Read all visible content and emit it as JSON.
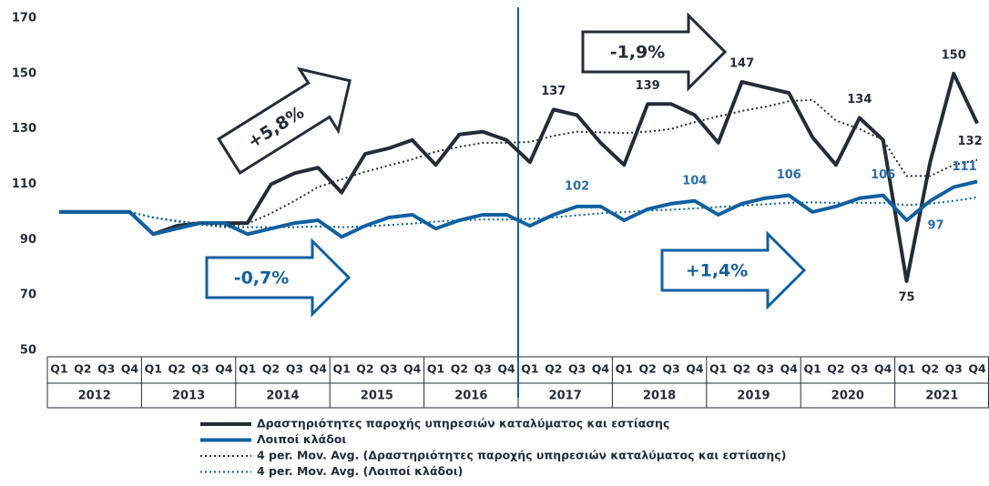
{
  "chart_data": {
    "type": "line",
    "categories": [
      "Q1",
      "Q2",
      "Q3",
      "Q4",
      "Q1",
      "Q2",
      "Q3",
      "Q4",
      "Q1",
      "Q2",
      "Q3",
      "Q4",
      "Q1",
      "Q2",
      "Q3",
      "Q4",
      "Q1",
      "Q2",
      "Q3",
      "Q4",
      "Q1",
      "Q2",
      "Q3",
      "Q4",
      "Q1",
      "Q2",
      "Q3",
      "Q4",
      "Q1",
      "Q2",
      "Q3",
      "Q4",
      "Q1",
      "Q2",
      "Q3",
      "Q4",
      "Q1",
      "Q2",
      "Q3",
      "Q4"
    ],
    "years": [
      "2012",
      "2013",
      "2014",
      "2015",
      "2016",
      "2017",
      "2018",
      "2019",
      "2020",
      "2021"
    ],
    "ylim": [
      50,
      170
    ],
    "yticks": [
      50,
      70,
      90,
      110,
      130,
      150,
      170
    ],
    "grid": false,
    "series": [
      {
        "name": "Δραστηριότητες παροχής υπηρεσιών καταλύματος και εστίασης",
        "color": "#262b36",
        "style": "solid",
        "values": [
          100,
          100,
          100,
          100,
          92,
          95,
          96,
          96,
          96,
          110,
          114,
          116,
          107,
          121,
          123,
          126,
          117,
          128,
          129,
          126,
          118,
          137,
          135,
          125,
          117,
          139,
          139,
          135,
          125,
          147,
          145,
          143,
          127,
          117,
          134,
          126,
          75,
          118,
          150,
          132
        ],
        "value_labels": [
          null,
          null,
          null,
          null,
          null,
          null,
          null,
          null,
          null,
          null,
          null,
          null,
          null,
          null,
          null,
          null,
          null,
          null,
          null,
          null,
          null,
          "137",
          null,
          null,
          null,
          "139",
          null,
          null,
          null,
          "147",
          null,
          null,
          null,
          null,
          "134",
          null,
          "75",
          null,
          "150",
          "132"
        ]
      },
      {
        "name": "Λοιποί κλάδοι",
        "color": "#1060a0",
        "style": "solid",
        "values": [
          100,
          100,
          100,
          100,
          92,
          94,
          96,
          96,
          92,
          94,
          96,
          97,
          91,
          95,
          98,
          99,
          94,
          97,
          99,
          99,
          95,
          99,
          102,
          102,
          97,
          101,
          103,
          104,
          99,
          103,
          105,
          106,
          100,
          102,
          105,
          106,
          97,
          104,
          109,
          111
        ],
        "value_labels": [
          null,
          null,
          null,
          null,
          null,
          null,
          null,
          null,
          null,
          null,
          null,
          null,
          null,
          null,
          null,
          null,
          null,
          null,
          null,
          null,
          null,
          null,
          "102",
          null,
          null,
          null,
          null,
          "104",
          null,
          null,
          null,
          "106",
          null,
          null,
          null,
          "106",
          "97",
          null,
          null,
          "111"
        ]
      },
      {
        "name": "4 per. Mov. Avg. (Δραστηριότητες παροχής υπηρεσιών καταλύματος και εστίασης)",
        "color": "#262b36",
        "style": "dotted",
        "values": [
          null,
          null,
          null,
          100,
          98,
          96.8,
          95.8,
          94.8,
          95.8,
          99.5,
          104,
          109,
          111.8,
          114.5,
          116.8,
          119,
          121.8,
          123.5,
          125,
          125,
          125.3,
          127.5,
          129,
          128.8,
          128.5,
          129,
          130,
          132.5,
          134.5,
          136.5,
          138,
          140,
          140.5,
          133,
          130,
          126,
          113,
          113,
          117,
          118.8
        ]
      },
      {
        "name": "4 per. Mov. Avg. (Λοιποί κλάδοι)",
        "color": "#1060a0",
        "style": "dotted",
        "values": [
          null,
          null,
          null,
          100,
          98,
          96.5,
          95.5,
          94.5,
          94.5,
          94.5,
          94.5,
          94.8,
          94.5,
          94.8,
          95.3,
          95.8,
          96.5,
          97,
          97.3,
          97.3,
          97.5,
          98,
          98.8,
          99.5,
          100,
          100.5,
          100.8,
          101.3,
          101.8,
          102.3,
          102.8,
          103.3,
          103.5,
          103.3,
          103.3,
          103.3,
          102.5,
          103,
          104,
          105.3
        ]
      }
    ],
    "annotations": [
      {
        "text": "+5,8%",
        "color": "#262b36"
      },
      {
        "text": "-1,9%",
        "color": "#262b36"
      },
      {
        "text": "-0,7%",
        "color": "#1060a0"
      },
      {
        "text": "+1,4%",
        "color": "#1060a0"
      }
    ]
  }
}
